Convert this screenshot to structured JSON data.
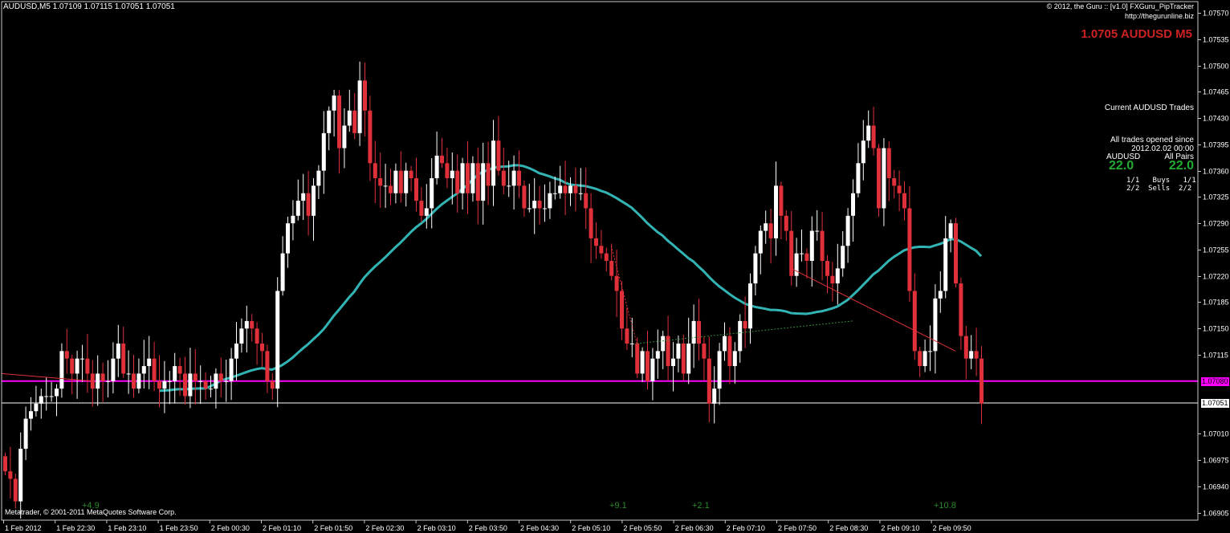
{
  "header": {
    "symbol_line": "AUDUSD,M5  1.07109 1.07115 1.07051 1.07051",
    "copyright": "© 2012, the Guru :: [v1.0] FXGuru_PipTracker",
    "url": "http://thegurunline.biz",
    "big_label": "1.0705 AUDUSD M5"
  },
  "panel": {
    "title": "Current AUDUSD Trades",
    "since_line1": "All trades opened since",
    "since_line2": "2012.02.02 00:00",
    "col_left": "AUDUSD",
    "col_right": "All Pairs",
    "pips_left": "22.0",
    "pips_right": "22.0",
    "row_buys": "1/1   Buys   1/1",
    "row_sells": "2/2  Sells  2/2"
  },
  "footer": {
    "credit": "Metatrader, © 2001-2011 MetaQuotes Software Corp."
  },
  "trade_labels": [
    "+4.9",
    "+9.1",
    "+2.1",
    "+10.8"
  ],
  "colors": {
    "background": "#000000",
    "bull_candle": "#ffffff",
    "bear_candle": "#e0303a",
    "moving_average": "#32b4b4",
    "horizontal_line": "#ff00ff",
    "bid_line": "#ffffff",
    "pip_text": "#2a8a2a",
    "label_red": "#cc2222"
  },
  "chart_data": {
    "type": "candlestick",
    "symbol": "AUDUSD",
    "timeframe": "M5",
    "ylim": [
      1.06895,
      1.07585
    ],
    "y_ticks": [
      "1.07570",
      "1.07535",
      "1.07500",
      "1.07465",
      "1.07430",
      "1.07395",
      "1.07360",
      "1.07325",
      "1.07290",
      "1.07255",
      "1.07220",
      "1.07185",
      "1.07150",
      "1.07115",
      "1.07010",
      "1.06975",
      "1.06940",
      "1.06905"
    ],
    "x_labels": [
      "1 Feb 2012",
      "1 Feb 22:30",
      "1 Feb 23:10",
      "1 Feb 23:50",
      "2 Feb 00:30",
      "2 Feb 01:10",
      "2 Feb 01:50",
      "2 Feb 02:30",
      "2 Feb 03:10",
      "2 Feb 03:50",
      "2 Feb 04:30",
      "2 Feb 05:10",
      "2 Feb 05:50",
      "2 Feb 06:30",
      "2 Feb 07:10",
      "2 Feb 07:50",
      "2 Feb 08:30",
      "2 Feb 09:10",
      "2 Feb 09:50"
    ],
    "horizontal_line": {
      "price": 1.0708,
      "label": "1.07080"
    },
    "bid_line": {
      "price": 1.07051,
      "label": "1.07051"
    },
    "closes": [
      1.0696,
      1.0695,
      1.0692,
      1.0699,
      1.0703,
      1.0704,
      1.0705,
      1.0706,
      1.0706,
      1.0706,
      1.0707,
      1.0712,
      1.0711,
      1.0709,
      1.0711,
      1.0711,
      1.0709,
      1.0707,
      1.0709,
      1.0708,
      1.0708,
      1.0711,
      1.0713,
      1.0709,
      1.0709,
      1.0707,
      1.0709,
      1.071,
      1.0711,
      1.0708,
      1.0707,
      1.0708,
      1.0708,
      1.071,
      1.0709,
      1.0706,
      1.0709,
      1.0708,
      1.0708,
      1.0707,
      1.0707,
      1.0709,
      1.0708,
      1.0708,
      1.0711,
      1.0713,
      1.0715,
      1.0716,
      1.0715,
      1.0713,
      1.0712,
      1.0708,
      1.0707,
      1.072,
      1.0725,
      1.0729,
      1.073,
      1.0732,
      1.0733,
      1.073,
      1.0734,
      1.0736,
      1.0741,
      1.0744,
      1.0746,
      1.0739,
      1.0742,
      1.0744,
      1.0741,
      1.0748,
      1.0744,
      1.0737,
      1.0735,
      1.0734,
      1.0734,
      1.0733,
      1.0736,
      1.0733,
      1.0736,
      1.0735,
      1.0732,
      1.073,
      1.0731,
      1.0735,
      1.0738,
      1.0737,
      1.0735,
      1.0736,
      1.0733,
      1.0737,
      1.0733,
      1.0737,
      1.0732,
      1.0737,
      1.0734,
      1.074,
      1.0736,
      1.0734,
      1.0734,
      1.0736,
      1.0734,
      1.0731,
      1.0731,
      1.0732,
      1.0731,
      1.0731,
      1.0733,
      1.0733,
      1.0734,
      1.0733,
      1.0734,
      1.0733,
      1.0733,
      1.0731,
      1.0727,
      1.0726,
      1.0725,
      1.0724,
      1.0722,
      1.072,
      1.0715,
      1.0713,
      1.0713,
      1.0709,
      1.0712,
      1.0708,
      1.0711,
      1.0712,
      1.0714,
      1.071,
      1.0711,
      1.0713,
      1.0709,
      1.0713,
      1.0716,
      1.0713,
      1.0711,
      1.0705,
      1.0707,
      1.0712,
      1.0714,
      1.071,
      1.0712,
      1.0716,
      1.0715,
      1.0721,
      1.0725,
      1.0728,
      1.0729,
      1.0727,
      1.0734,
      1.073,
      1.0728,
      1.0722,
      1.0725,
      1.0725,
      1.0724,
      1.0728,
      1.0728,
      1.0724,
      1.0722,
      1.0721,
      1.0723,
      1.0726,
      1.073,
      1.0733,
      1.0737,
      1.074,
      1.0742,
      1.0739,
      1.0731,
      1.0739,
      1.0735,
      1.0734,
      1.0733,
      1.0731,
      1.072,
      1.0712,
      1.071,
      1.0712,
      1.0712,
      1.0719,
      1.072,
      1.0727,
      1.0729,
      1.0721,
      1.0714,
      1.0711,
      1.0712,
      1.0711,
      1.0705
    ]
  }
}
